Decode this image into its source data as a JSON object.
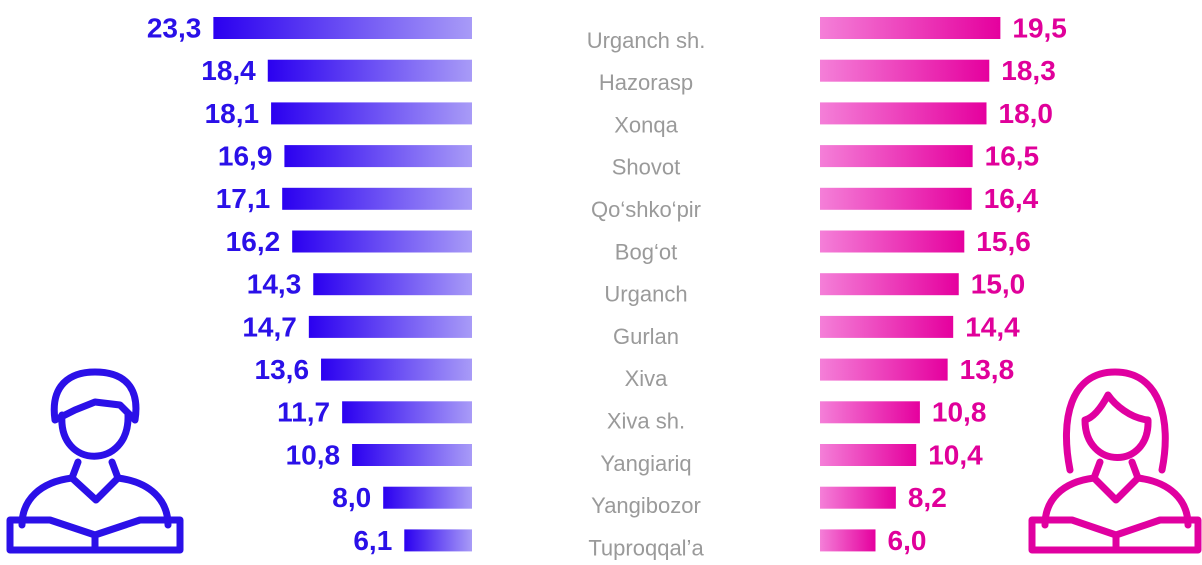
{
  "chart_data": {
    "type": "butterfly",
    "categories": [
      "Urganch sh.",
      "Hazorasp",
      "Xonqa",
      "Shovot",
      "Qo‘shko‘pir",
      "Bog‘ot",
      "Urganch",
      "Gurlan",
      "Xiva",
      "Xiva sh.",
      "Yangiariq",
      "Yangibozor",
      "Tuproqqal’a"
    ],
    "series": [
      {
        "colors": [
          "#2b00f0",
          "#a89bf7"
        ],
        "label_color": "#2a10e8",
        "values": [
          23.3,
          18.4,
          18.1,
          16.9,
          17.1,
          16.2,
          14.3,
          14.7,
          13.6,
          11.7,
          10.8,
          8.0,
          6.1
        ],
        "value_labels": [
          "23,3",
          "18,4",
          "18,1",
          "16,9",
          "17,1",
          "16,2",
          "14,3",
          "14,7",
          "13,6",
          "11,7",
          "10,8",
          "8,0",
          "6,1"
        ]
      },
      {
        "colors": [
          "#f47fd8",
          "#e5009e"
        ],
        "label_color": "#e0009a",
        "values": [
          19.5,
          18.3,
          18.0,
          16.5,
          16.4,
          15.6,
          15.0,
          14.4,
          13.8,
          10.8,
          10.4,
          8.2,
          6.0
        ],
        "value_labels": [
          "19,5",
          "18,3",
          "18,0",
          "16,5",
          "16,4",
          "15,6",
          "15,0",
          "14,4",
          "13,8",
          "10,8",
          "10,4",
          "8,2",
          "6,0"
        ]
      }
    ]
  }
}
